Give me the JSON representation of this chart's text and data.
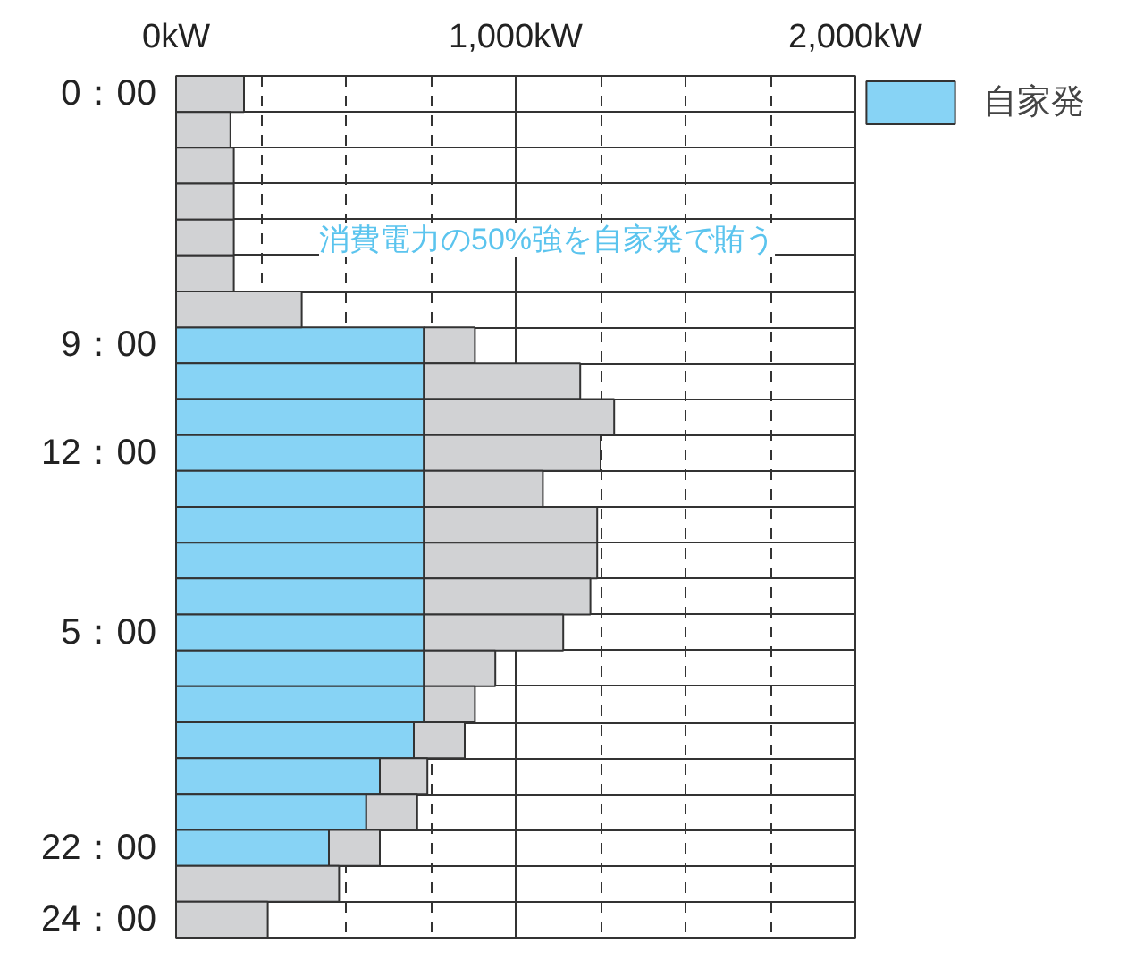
{
  "chart_data": {
    "type": "bar",
    "orientation": "horizontal",
    "stacked": true,
    "categories": [
      "0：00",
      null,
      null,
      null,
      null,
      null,
      null,
      "9：00",
      null,
      null,
      "12：00",
      null,
      null,
      null,
      null,
      "5：00",
      null,
      null,
      null,
      null,
      null,
      "22：00",
      null,
      "24：00"
    ],
    "series": [
      {
        "name": "自家発",
        "color": "#87d3f5",
        "values": [
          null,
          null,
          null,
          null,
          null,
          null,
          null,
          730,
          730,
          730,
          730,
          730,
          730,
          730,
          730,
          730,
          730,
          730,
          700,
          600,
          560,
          450,
          null,
          null
        ]
      },
      {
        "color": "#d1d2d4",
        "values": [
          200,
          160,
          170,
          170,
          170,
          170,
          370,
          150,
          460,
          560,
          520,
          350,
          510,
          510,
          490,
          410,
          210,
          150,
          150,
          140,
          150,
          150,
          480,
          270
        ]
      }
    ],
    "xlim": [
      0,
      2000
    ],
    "xticks": [
      {
        "value": 0,
        "label": "0kW"
      },
      {
        "value": 250,
        "label": null
      },
      {
        "value": 500,
        "label": null
      },
      {
        "value": 750,
        "label": null
      },
      {
        "value": 1000,
        "label": "1,000kW"
      },
      {
        "value": 1250,
        "label": null
      },
      {
        "value": 1500,
        "label": null
      },
      {
        "value": 1750,
        "label": null
      },
      {
        "value": 2000,
        "label": "2,000kW"
      }
    ],
    "grid": true,
    "legend": "right",
    "annotations": [
      "消費電力の50%強を自家発で賄う"
    ]
  }
}
